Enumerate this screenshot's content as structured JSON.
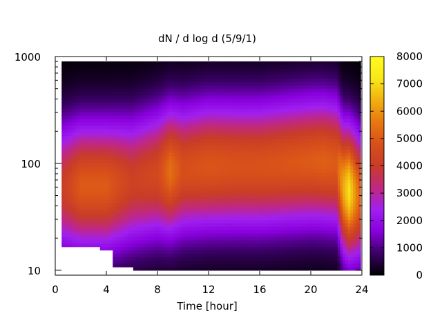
{
  "chart_data": {
    "type": "heatmap",
    "title": "dN / d log d (5/9/1)",
    "xlabel": "Time [hour]",
    "ylabel": "",
    "xlim": [
      0,
      24
    ],
    "ylim": [
      9,
      1000
    ],
    "yscale": "log",
    "x_ticks": [
      0,
      4,
      8,
      12,
      16,
      20,
      24
    ],
    "x_tick_labels": [
      "0",
      "4",
      "8",
      "12",
      "16",
      "20",
      "24"
    ],
    "y_ticks": [
      10,
      100,
      1000
    ],
    "y_tick_labels": [
      "10",
      "100",
      "1000"
    ],
    "colorbar": {
      "range": [
        0,
        8000
      ],
      "ticks": [
        0,
        1000,
        2000,
        3000,
        4000,
        5000,
        6000,
        7000,
        8000
      ],
      "tick_labels": [
        "0",
        "1000",
        "2000",
        "3000",
        "4000",
        "5000",
        "6000",
        "7000",
        "8000"
      ],
      "colormap": [
        "#000000",
        "#3a0066",
        "#8800dd",
        "#a020f0",
        "#c02880",
        "#c83c28",
        "#d8501a",
        "#e87810",
        "#f0b010",
        "#f8e818",
        "#fffc20"
      ]
    },
    "data_extent": {
      "x": [
        0.5,
        23.9
      ],
      "y": [
        10,
        900
      ]
    },
    "peak_mode_diameter": {
      "hours": [
        0.5,
        2,
        4,
        6,
        8,
        9,
        10,
        12,
        14,
        16,
        18,
        20,
        21,
        22,
        22.5,
        23,
        23.9
      ],
      "diameter": [
        60,
        62,
        62,
        68,
        80,
        85,
        88,
        95,
        95,
        95,
        100,
        105,
        105,
        100,
        60,
        55,
        50
      ]
    },
    "peak_value": {
      "hours": [
        0.5,
        2,
        4,
        6,
        8,
        9,
        10,
        12,
        14,
        16,
        18,
        20,
        21,
        22,
        22.5,
        23,
        23.9
      ],
      "value": [
        4000,
        5000,
        5000,
        4200,
        4500,
        5400,
        4700,
        4900,
        4800,
        4800,
        4900,
        5000,
        5100,
        5000,
        6200,
        7100,
        5000
      ]
    },
    "missing_regions": [
      {
        "x": [
          0.5,
          3.5
        ],
        "y": [
          9,
          17
        ]
      },
      {
        "x": [
          3.5,
          4.5
        ],
        "y": [
          9,
          15
        ]
      },
      {
        "x": [
          4.5,
          6
        ],
        "y": [
          9,
          11
        ]
      }
    ]
  }
}
